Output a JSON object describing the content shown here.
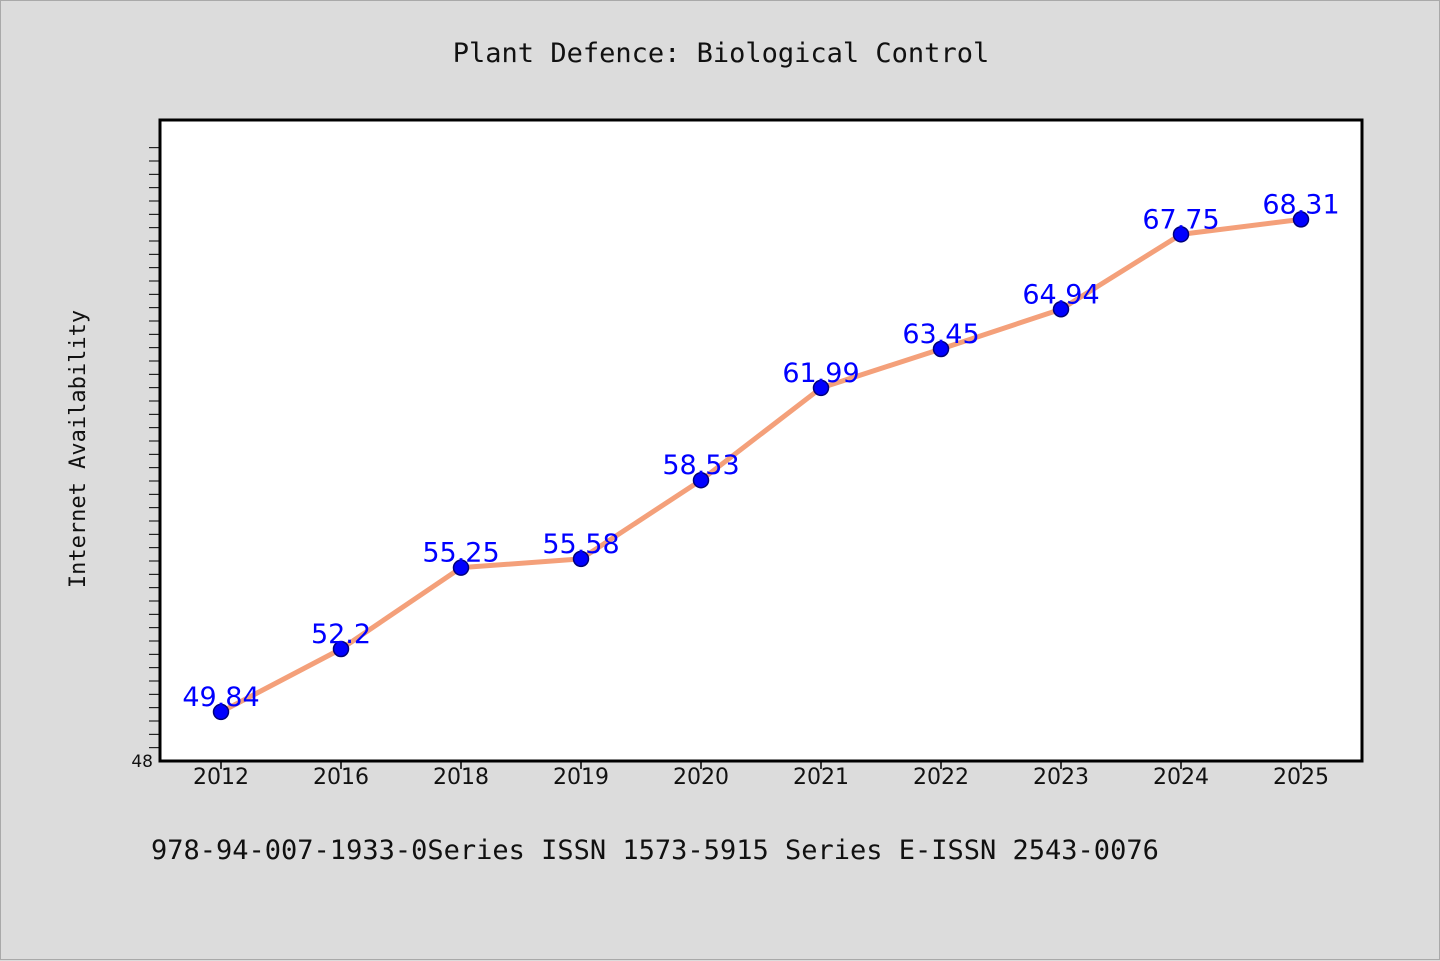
{
  "footer": {
    "text": "978-94-007-1933-0Series ISSN 1573-5915 Series E-ISSN 2543-0076"
  },
  "colors": {
    "background": "#dcdcdc",
    "plot_background": "#ffffff",
    "line": "#f4a07a",
    "marker": "#0000ff",
    "marker_edge": "#00007a",
    "data_label": "#0000ff"
  },
  "chart_data": {
    "type": "line",
    "title": "Plant Defence: Biological Control",
    "xlabel": "",
    "ylabel": "Internet Availability",
    "categories": [
      "2012",
      "2016",
      "2018",
      "2019",
      "2020",
      "2021",
      "2022",
      "2023",
      "2024",
      "2025"
    ],
    "values": [
      49.84,
      52.2,
      55.25,
      55.58,
      58.53,
      61.99,
      63.45,
      64.94,
      67.75,
      68.31
    ],
    "data_labels": [
      "49.84",
      "52.2",
      "55.25",
      "55.58",
      "58.53",
      "61.99",
      "63.45",
      "64.94",
      "67.75",
      "68.31"
    ],
    "ylim": [
      48,
      72
    ],
    "y_tick_labels": [
      "48"
    ],
    "grid": false,
    "legend": "none"
  }
}
